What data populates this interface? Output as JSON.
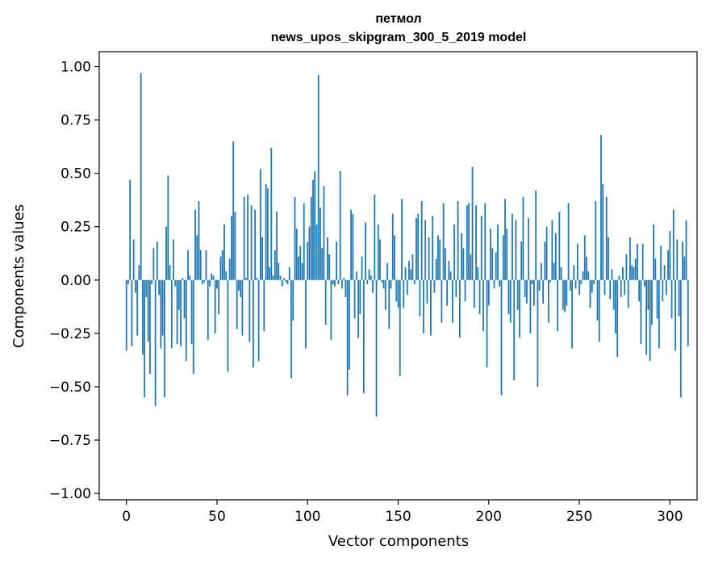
{
  "chart_data": {
    "type": "bar",
    "title_line1": "петмол",
    "title_line2": "news_upos_skipgram_300_5_2019 model",
    "xlabel": "Vector components",
    "ylabel": "Components values",
    "xlim": [
      -15,
      315
    ],
    "ylim": [
      -1.03,
      1.07
    ],
    "xticks": [
      0,
      50,
      100,
      150,
      200,
      250,
      300
    ],
    "xtick_labels": [
      "0",
      "50",
      "100",
      "150",
      "200",
      "250",
      "300"
    ],
    "yticks": [
      1.0,
      0.75,
      0.5,
      0.25,
      0.0,
      -0.25,
      -0.5,
      -0.75,
      -1.0
    ],
    "ytick_labels": [
      "1.00",
      "0.75",
      "0.50",
      "0.25",
      "0.00",
      "−0.25",
      "−0.50",
      "−0.75",
      "−1.00"
    ],
    "bar_color": "#1f77b4",
    "values": [
      -0.33,
      -0.02,
      0.47,
      -0.31,
      0.19,
      -0.06,
      -0.26,
      0.07,
      0.97,
      -0.35,
      -0.55,
      -0.08,
      -0.29,
      -0.44,
      -0.02,
      0.15,
      -0.59,
      0.18,
      -0.07,
      -0.32,
      -0.26,
      -0.55,
      0.25,
      0.49,
      0.07,
      -0.32,
      0.19,
      -0.03,
      -0.3,
      -0.14,
      -0.31,
      0.01,
      -0.18,
      -0.38,
      0.14,
      0.02,
      -0.3,
      -0.44,
      0.33,
      0.21,
      0.37,
      0.14,
      -0.02,
      -0.01,
      0.14,
      -0.28,
      -0.03,
      0.03,
      0.02,
      -0.25,
      -0.04,
      -0.16,
      0.11,
      0.14,
      0.26,
      0.04,
      -0.43,
      0.1,
      0.3,
      0.65,
      0.32,
      -0.23,
      -0.05,
      -0.08,
      -0.26,
      0.39,
      0.01,
      0.4,
      -0.29,
      0.35,
      -0.41,
      0.33,
      0.01,
      -0.38,
      0.52,
      0.2,
      -0.24,
      0.45,
      0.43,
      0.06,
      0.62,
      0.02,
      0.14,
      0.32,
      0.08,
      0.02,
      -0.03,
      0.01,
      -0.01,
      -0.02,
      0.06,
      -0.46,
      -0.19,
      0.39,
      0.24,
      0.11,
      0.16,
      0.08,
      0.36,
      -0.32,
      0.18,
      0.25,
      0.39,
      0.47,
      0.51,
      0.26,
      0.96,
      0.34,
      0.15,
      0.44,
      -0.21,
      0.2,
      0.12,
      -0.28,
      -0.02,
      -0.03,
      0.18,
      -0.02,
      0.51,
      -0.04,
      0.01,
      -0.08,
      -0.54,
      -0.42,
      0.33,
      0.31,
      -0.18,
      0.04,
      -0.27,
      -0.16,
      0.11,
      -0.53,
      0.27,
      -0.02,
      0.05,
      0.02,
      -0.06,
      0.4,
      -0.64,
      0.26,
      0.19,
      -0.01,
      -0.04,
      -0.14,
      0.08,
      -0.23,
      -0.04,
      0.31,
      0.21,
      -0.1,
      -0.13,
      -0.45,
      0.38,
      -0.13,
      0.06,
      -0.07,
      0.09,
      0.05,
      0.12,
      -0.02,
      0.29,
      0.31,
      -0.17,
      0.37,
      -0.25,
      0.28,
      -0.11,
      0.2,
      -0.26,
      0.3,
      -0.06,
      0.1,
      0.21,
      0.19,
      -0.2,
      0.36,
      0.15,
      -0.12,
      0.09,
      0.04,
      -0.2,
      0.26,
      -0.08,
      0.37,
      -0.27,
      0.22,
      0.15,
      -0.1,
      0.35,
      0.36,
      0.12,
      0.53,
      -0.13,
      0.35,
      0.06,
      -0.16,
      0.3,
      -0.24,
      0.36,
      -0.41,
      -0.12,
      0.24,
      0.15,
      -0.04,
      0.13,
      0.26,
      -0.03,
      -0.54,
      0.21,
      0.38,
      0.24,
      -0.16,
      -0.2,
      0.31,
      -0.47,
      0.28,
      -0.14,
      -0.27,
      0.18,
      0.39,
      -0.08,
      -0.11,
      0.29,
      -0.25,
      -0.02,
      -0.12,
      0.42,
      -0.5,
      -0.05,
      0.08,
      -0.11,
      0.18,
      0.25,
      -0.2,
      -0.01,
      0.28,
      0.08,
      0.22,
      -0.24,
      0.32,
      0.06,
      -0.14,
      -0.15,
      -0.12,
      0.36,
      -0.05,
      -0.32,
      0.07,
      -0.04,
      0.17,
      -0.07,
      -0.02,
      0.04,
      0.21,
      0.11,
      0.04,
      -0.13,
      -0.06,
      -0.02,
      0.37,
      -0.19,
      -0.29,
      0.68,
      0.45,
      -0.07,
      0.39,
      0.2,
      -0.09,
      0.05,
      -0.14,
      -0.25,
      -0.36,
      0.02,
      -0.08,
      0.06,
      -0.07,
      0.12,
      -0.13,
      0.2,
      0.07,
      0.06,
      0.1,
      0.17,
      -0.1,
      -0.3,
      0.17,
      -0.03,
      -0.35,
      -0.14,
      -0.38,
      -0.21,
      0.26,
      0.1,
      -0.18,
      -0.32,
      0.16,
      -0.1,
      0.07,
      -0.07,
      0.14,
      0.23,
      -0.18,
      0.33,
      -0.33,
      0.19,
      -0.17,
      -0.55,
      0.18,
      0.11,
      0.28,
      -0.31
    ]
  }
}
